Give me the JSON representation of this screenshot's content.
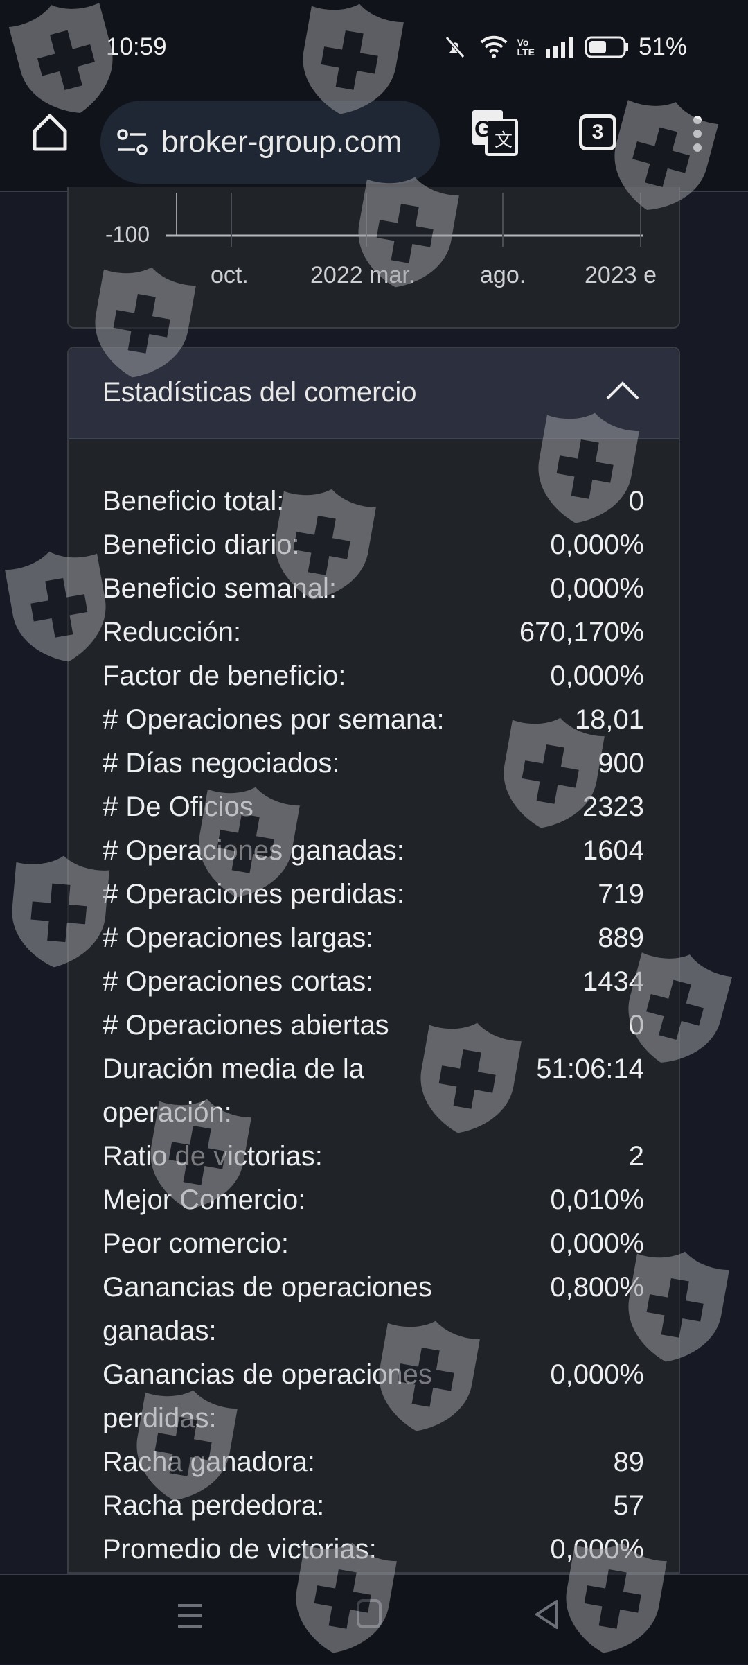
{
  "status_bar": {
    "time": "10:59",
    "battery": "51%",
    "icons": [
      "mute-icon",
      "wifi-icon",
      "volte-icon",
      "signal-icon",
      "battery-icon"
    ]
  },
  "browser": {
    "url": "broker-group.com",
    "tab_count": "3"
  },
  "chart": {
    "y_tick": "-100",
    "x_ticks": [
      "oct.",
      "2022 mar.",
      "ago.",
      "2023 e"
    ]
  },
  "stats": {
    "title": "Estadísticas del comercio",
    "rows": [
      {
        "label": "Beneficio total:",
        "value": "0"
      },
      {
        "label": "Beneficio diario:",
        "value": "0,000%"
      },
      {
        "label": "Beneficio semanal:",
        "value": "0,000%"
      },
      {
        "label": "Reducción:",
        "value": "670,170%"
      },
      {
        "label": "Factor de beneficio:",
        "value": "0,000%"
      },
      {
        "label": "# Operaciones por semana:",
        "value": "18,01"
      },
      {
        "label": "# Días negociados:",
        "value": "900"
      },
      {
        "label": "# De Oficios",
        "value": "2323"
      },
      {
        "label": "# Operaciones ganadas:",
        "value": "1604"
      },
      {
        "label": "# Operaciones perdidas:",
        "value": "719"
      },
      {
        "label": "# Operaciones largas:",
        "value": "889"
      },
      {
        "label": "# Operaciones cortas:",
        "value": "1434"
      },
      {
        "label": "# Operaciones abiertas",
        "value": "0"
      },
      {
        "label": "Duración media de la\noperación:",
        "value": "51:06:14"
      },
      {
        "label": "Ratio de victorias:",
        "value": "2"
      },
      {
        "label": "Mejor Comercio:",
        "value": "0,010%"
      },
      {
        "label": "Peor comercio:",
        "value": "0,000%"
      },
      {
        "label": "Ganancias de operaciones\nganadas:",
        "value": "0,800%"
      },
      {
        "label": "Ganancias de operaciones\nperdidas:",
        "value": "0,000%"
      },
      {
        "label": "Racha ganadora:",
        "value": "89"
      },
      {
        "label": "Racha perdedora:",
        "value": "57"
      },
      {
        "label": "Promedio de victorias:",
        "value": "0,000%"
      }
    ]
  }
}
